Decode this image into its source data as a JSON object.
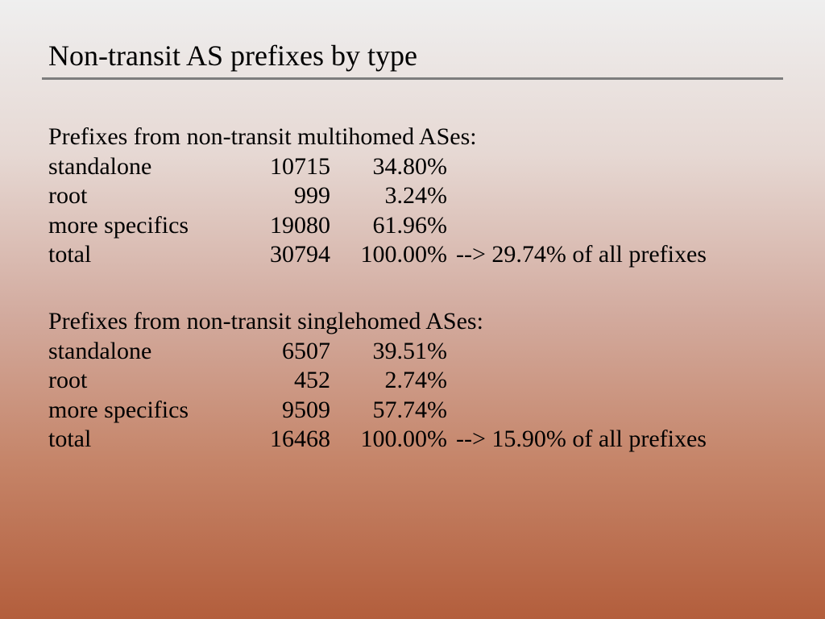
{
  "title": "Non-transit AS prefixes by type",
  "sections": [
    {
      "heading": "Prefixes from non-transit multihomed ASes:",
      "rows": [
        [
          "standalone",
          "10715",
          "34.80%"
        ],
        [
          "root",
          "999",
          "3.24%"
        ],
        [
          "more specifics",
          "19080",
          "61.96%"
        ],
        [
          "total",
          "30794",
          "100.00%",
          "--> 29.74% of all prefixes"
        ]
      ]
    },
    {
      "heading": "Prefixes from non-transit singlehomed ASes:",
      "rows": [
        [
          "standalone",
          "6507",
          "39.51%"
        ],
        [
          "root",
          "452",
          "2.74%"
        ],
        [
          "more specifics",
          "9509",
          "57.74%"
        ],
        [
          "total",
          "16468",
          "100.00%",
          "--> 15.90% of all prefixes"
        ]
      ]
    }
  ]
}
